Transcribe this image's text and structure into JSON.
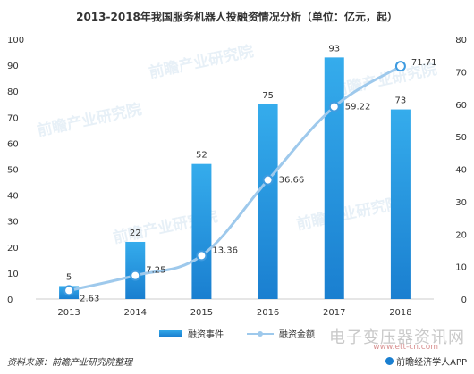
{
  "chart_data": {
    "type": "bar",
    "title": "2013-2018年我国服务机器人投融资情况分析（单位：亿元，起）",
    "categories": [
      "2013",
      "2014",
      "2015",
      "2016",
      "2017",
      "2018"
    ],
    "series": [
      {
        "name": "融资事件",
        "type": "bar",
        "axis": "left",
        "values": [
          5,
          22,
          52,
          75,
          93,
          73
        ],
        "color": "#1a8fe0"
      },
      {
        "name": "融资金额",
        "type": "line",
        "axis": "right",
        "values": [
          2.63,
          7.25,
          13.36,
          36.66,
          59.22,
          71.71
        ],
        "color": "#9ec9ec"
      }
    ],
    "left_axis": {
      "ylim": [
        0,
        100
      ],
      "ticks": [
        0,
        10,
        20,
        30,
        40,
        50,
        60,
        70,
        80,
        90,
        100
      ]
    },
    "right_axis": {
      "ylim": [
        0,
        80
      ],
      "ticks": [
        0,
        10,
        20,
        30,
        40,
        50,
        60,
        70,
        80
      ]
    },
    "grid": false,
    "legend": "bottom-center"
  },
  "labels": {
    "bar_labels": [
      "5",
      "22",
      "52",
      "75",
      "93",
      "73"
    ],
    "line_labels": [
      "2.63",
      "7.25",
      "13.36",
      "36.66",
      "59.22",
      "71.71"
    ]
  },
  "source": "资料来源：前瞻产业研究院整理",
  "brand": "前瞻经济学人APP",
  "watermark": "电子变压器资讯网",
  "watermark_url": "www.ett-cn.com"
}
